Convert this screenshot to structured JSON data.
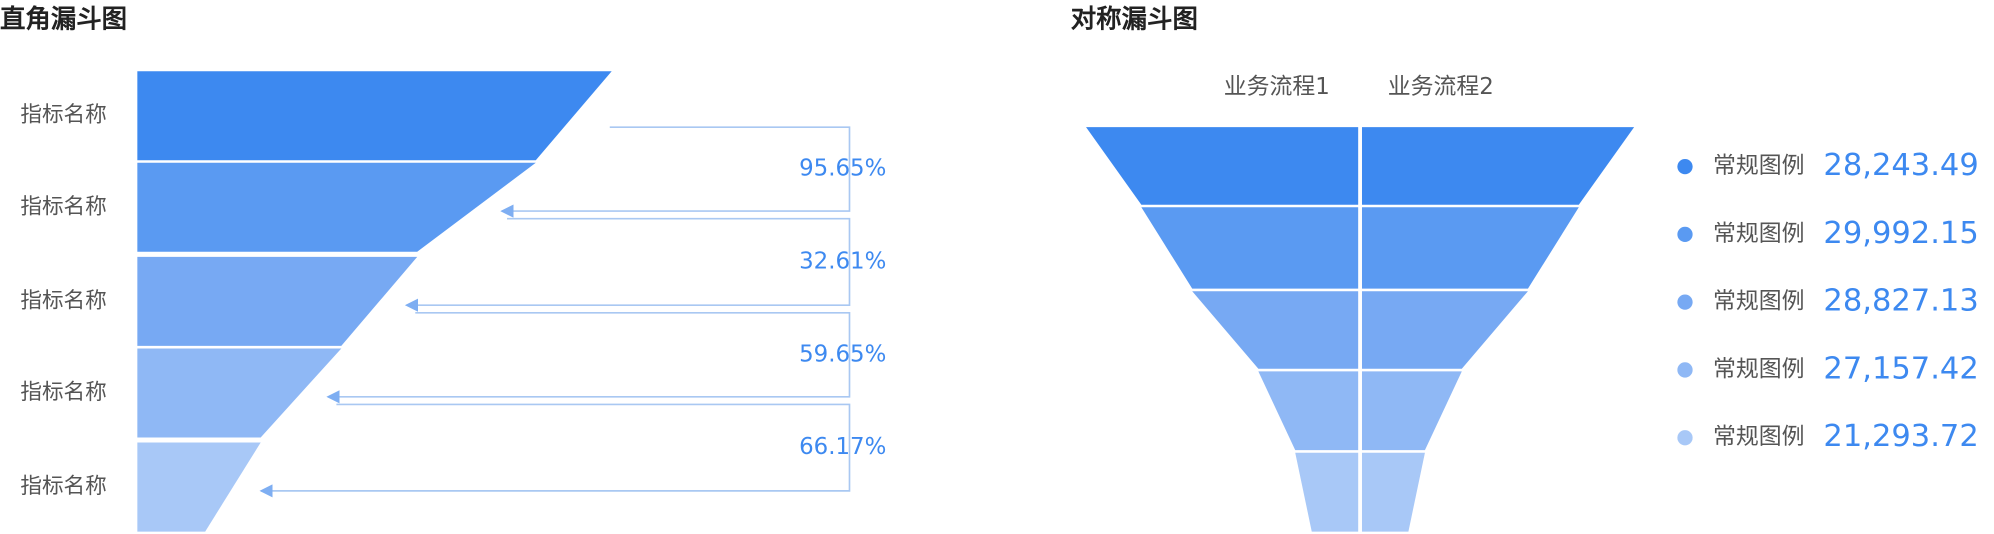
{
  "chart_data": [
    {
      "type": "right-funnel",
      "title": "直角漏斗图",
      "categories": [
        "指标名称",
        "指标名称",
        "指标名称",
        "指标名称",
        "指标名称"
      ],
      "values": [
        100,
        84,
        59,
        43,
        26
      ],
      "colors": [
        "#3d89f0",
        "#5a9af2",
        "#77a9f3",
        "#8fb8f5",
        "#a8c8f7"
      ],
      "rates": [
        95.65,
        32.61,
        59.65,
        66.17
      ],
      "rate_labels": [
        "95.65%",
        "32.61%",
        "59.65%",
        "66.17%"
      ]
    },
    {
      "type": "symmetric-funnel",
      "title": "对称漏斗图",
      "series_names": [
        "业务流程1",
        "业务流程2"
      ],
      "categories": [
        "常规图例",
        "常规图例",
        "常规图例",
        "常规图例",
        "常规图例"
      ],
      "values": [
        28243.49,
        29992.15,
        28827.13,
        27157.42,
        21293.72
      ],
      "value_labels": [
        "28,243.49",
        "29,992.15",
        "28,827.13",
        "27,157.42",
        "21,293.72"
      ],
      "colors": [
        "#3d89f0",
        "#5a9af2",
        "#77a9f3",
        "#8fb8f5",
        "#a8c8f7"
      ]
    }
  ]
}
